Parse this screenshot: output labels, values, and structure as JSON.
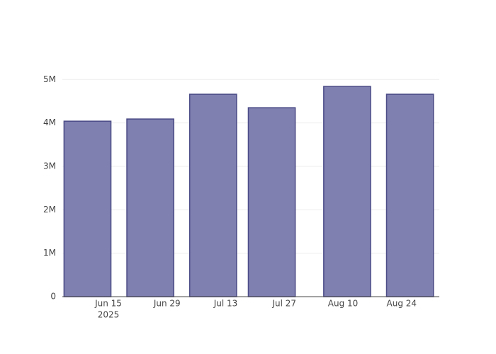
{
  "chart_data": {
    "type": "bar",
    "x": [
      "2025-06-10",
      "2025-06-25",
      "2025-07-10",
      "2025-07-24",
      "2025-08-11",
      "2025-08-26"
    ],
    "values": [
      4040000,
      4090000,
      4660000,
      4350000,
      4840000,
      4660000
    ],
    "color": "#7f7fb0",
    "edge_color": "#4b4b87",
    "xlim": [
      "2025-06-04",
      "2025-09-02"
    ],
    "xticks": [
      {
        "value": "2025-06-15",
        "label": "Jun 15"
      },
      {
        "value": "2025-06-29",
        "label": "Jun 29"
      },
      {
        "value": "2025-07-13",
        "label": "Jul 13"
      },
      {
        "value": "2025-07-27",
        "label": "Jul 27"
      },
      {
        "value": "2025-08-10",
        "label": "Aug 10"
      },
      {
        "value": "2025-08-24",
        "label": "Aug 24"
      }
    ],
    "x_year": "2025",
    "ylim": [
      0,
      5200000
    ],
    "yticks": [
      0,
      {
        "value": 1000000,
        "label": "1M"
      },
      {
        "value": 2000000,
        "label": "2M"
      },
      {
        "value": 3000000,
        "label": "3M"
      },
      {
        "value": 4000000,
        "label": "4M"
      },
      {
        "value": 5000000,
        "label": "5M"
      }
    ],
    "grid": true
  }
}
